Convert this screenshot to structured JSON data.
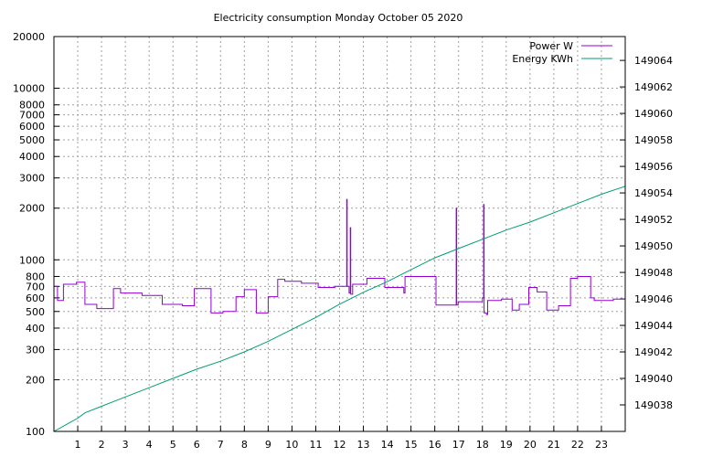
{
  "chart_data": {
    "type": "line",
    "title": "Electricity consumption Monday October 05 2020",
    "x_ticks": [
      "1",
      "2",
      "3",
      "4",
      "5",
      "6",
      "7",
      "8",
      "9",
      "10",
      "11",
      "12",
      "13",
      "14",
      "15",
      "16",
      "17",
      "18",
      "19",
      "20",
      "21",
      "22",
      "23"
    ],
    "xlim": [
      0,
      24
    ],
    "y_left": {
      "scale": "log",
      "lim": [
        100,
        20000
      ],
      "ticks": [
        100,
        200,
        300,
        400,
        500,
        600,
        700,
        800,
        1000,
        2000,
        3000,
        4000,
        5000,
        6000,
        7000,
        8000,
        10000,
        20000
      ]
    },
    "y_right": {
      "scale": "linear",
      "lim": [
        149036,
        149065.8
      ],
      "ticks": [
        149038,
        149040,
        149042,
        149044,
        149046,
        149048,
        149050,
        149052,
        149054,
        149056,
        149058,
        149060,
        149062,
        149064
      ]
    },
    "grid": true,
    "legend_position": "top-right",
    "series": [
      {
        "name": "Power W",
        "color": "#9400d3",
        "axis": "left",
        "style": "step",
        "points": [
          [
            0,
            700
          ],
          [
            0.15,
            580
          ],
          [
            0.4,
            720
          ],
          [
            0.95,
            740
          ],
          [
            1.3,
            550
          ],
          [
            1.8,
            520
          ],
          [
            2.5,
            680
          ],
          [
            2.8,
            640
          ],
          [
            3.7,
            620
          ],
          [
            4.55,
            550
          ],
          [
            5.4,
            540
          ],
          [
            5.9,
            680
          ],
          [
            6.6,
            490
          ],
          [
            7.1,
            500
          ],
          [
            7.65,
            610
          ],
          [
            8.0,
            670
          ],
          [
            8.5,
            490
          ],
          [
            9.0,
            610
          ],
          [
            9.4,
            770
          ],
          [
            9.7,
            750
          ],
          [
            10.4,
            730
          ],
          [
            11.1,
            690
          ],
          [
            11.8,
            700
          ],
          [
            12.3,
            2250
          ],
          [
            12.32,
            700
          ],
          [
            12.4,
            640
          ],
          [
            12.45,
            1540
          ],
          [
            12.47,
            630
          ],
          [
            12.55,
            720
          ],
          [
            13.15,
            780
          ],
          [
            13.9,
            690
          ],
          [
            14.7,
            640
          ],
          [
            14.75,
            800
          ],
          [
            16.05,
            545
          ],
          [
            16.9,
            2000
          ],
          [
            16.92,
            545
          ],
          [
            16.98,
            570
          ],
          [
            18.0,
            600
          ],
          [
            18.05,
            2100
          ],
          [
            18.07,
            490
          ],
          [
            18.17,
            480
          ],
          [
            18.22,
            580
          ],
          [
            18.8,
            590
          ],
          [
            19.25,
            510
          ],
          [
            19.55,
            550
          ],
          [
            19.95,
            690
          ],
          [
            20.3,
            650
          ],
          [
            20.7,
            510
          ],
          [
            21.2,
            540
          ],
          [
            21.7,
            780
          ],
          [
            22.0,
            800
          ],
          [
            22.55,
            600
          ],
          [
            22.7,
            580
          ],
          [
            23.5,
            590
          ],
          [
            24,
            590
          ]
        ]
      },
      {
        "name": "Energy KWh",
        "color": "#009e73",
        "axis": "right",
        "style": "line",
        "points": [
          [
            0,
            149036.0
          ],
          [
            0.5,
            149036.5
          ],
          [
            1.0,
            149037.0
          ],
          [
            1.3,
            149037.4
          ],
          [
            2.0,
            149037.9
          ],
          [
            3.0,
            149038.6
          ],
          [
            4.0,
            149039.3
          ],
          [
            5.0,
            149040.0
          ],
          [
            6.0,
            149040.7
          ],
          [
            7.0,
            149041.3
          ],
          [
            8.0,
            149042.0
          ],
          [
            9.0,
            149042.8
          ],
          [
            10.0,
            149043.7
          ],
          [
            11.0,
            149044.6
          ],
          [
            12.0,
            149045.6
          ],
          [
            13.0,
            149046.5
          ],
          [
            14.0,
            149047.3
          ],
          [
            15.0,
            149048.2
          ],
          [
            16.0,
            149049.1
          ],
          [
            17.0,
            149049.8
          ],
          [
            18.0,
            149050.5
          ],
          [
            19.0,
            149051.2
          ],
          [
            20.0,
            149051.8
          ],
          [
            21.0,
            149052.5
          ],
          [
            22.0,
            149053.2
          ],
          [
            23.0,
            149053.9
          ],
          [
            24,
            149054.5
          ]
        ]
      }
    ]
  }
}
